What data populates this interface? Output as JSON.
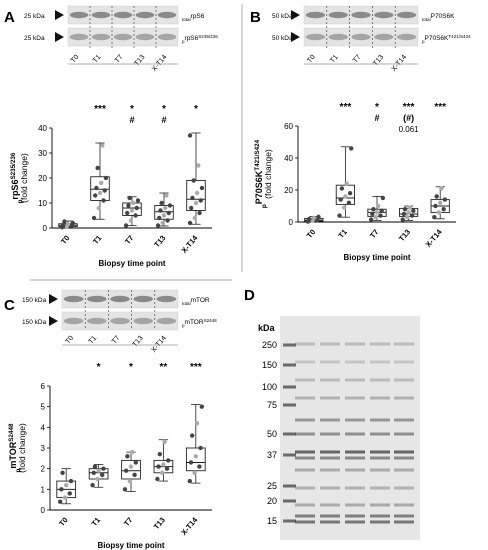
{
  "panels": {
    "A": {
      "letter": "A"
    },
    "B": {
      "letter": "B"
    },
    "C": {
      "letter": "C"
    },
    "D": {
      "letter": "D"
    }
  },
  "blots": {
    "A": {
      "rows": [
        {
          "kda": "25 kDa",
          "pre": "total",
          "name": "rpS6",
          "sup": ""
        },
        {
          "kda": "25 kDa",
          "pre": "p",
          "name": "rpS6",
          "sup": "S235/236"
        }
      ],
      "lanes": [
        "T0",
        "T1",
        "T7",
        "T13",
        "X-T14"
      ]
    },
    "B": {
      "rows": [
        {
          "kda": "50 kDa",
          "pre": "total",
          "name": "P70S6K",
          "sup": ""
        },
        {
          "kda": "50 kDa",
          "pre": "p",
          "name": "P70S6K",
          "sup": "T421/S424"
        }
      ],
      "lanes": [
        "T0",
        "T1",
        "T7",
        "T13",
        "X-T14"
      ]
    },
    "C": {
      "rows": [
        {
          "kda": "150 kDa",
          "pre": "total",
          "name": "mTOR",
          "sup": ""
        },
        {
          "kda": "150 kDa",
          "pre": "p",
          "name": "mTOR",
          "sup": "S2448"
        }
      ],
      "lanes": [
        "T0",
        "T1",
        "T7",
        "T13",
        "X-T14"
      ]
    }
  },
  "chart_data": [
    {
      "panel": "A",
      "type": "box",
      "ylabel_main": "rpS6",
      "ylabel_pre": "p",
      "ylabel_sup": "S235/236",
      "ylabel_sub": "(fold change)",
      "xlabel": "Biopsy time point",
      "categories": [
        "T0",
        "T1",
        "T7",
        "T13",
        "X-T14"
      ],
      "ylim": [
        0,
        40
      ],
      "yticks": [
        0,
        10,
        20,
        30,
        40
      ],
      "boxes": [
        {
          "min": 0.2,
          "q1": 0.6,
          "median": 1.1,
          "q3": 1.7,
          "max": 2.8
        },
        {
          "min": 3.5,
          "q1": 11.0,
          "median": 15.5,
          "q3": 20.5,
          "max": 34.0
        },
        {
          "min": 1.0,
          "q1": 5.0,
          "median": 8.0,
          "q3": 10.0,
          "max": 12.5
        },
        {
          "min": 0.8,
          "q1": 3.5,
          "median": 6.5,
          "q3": 9.0,
          "max": 14.0
        },
        {
          "min": 1.5,
          "q1": 7.0,
          "median": 11.5,
          "q3": 19.0,
          "max": 38.0
        }
      ],
      "points": [
        [
          0.3,
          0.6,
          0.9,
          1.2,
          1.5,
          2.0,
          2.6
        ],
        [
          4,
          8,
          11,
          13,
          14,
          15,
          16,
          18,
          20,
          24,
          33
        ],
        [
          1,
          3,
          5,
          6,
          7,
          8,
          9,
          10,
          11,
          12
        ],
        [
          1,
          2,
          3,
          4,
          5,
          6,
          7,
          8,
          9,
          10,
          13
        ],
        [
          2,
          4,
          6,
          8,
          10,
          11,
          12,
          14,
          16,
          19,
          25,
          37
        ]
      ],
      "sig": [
        "",
        "***",
        "*",
        "*",
        "*"
      ],
      "sig2": [
        "",
        "",
        "#",
        "#",
        ""
      ]
    },
    {
      "panel": "B",
      "type": "box",
      "ylabel_main": "P70S6K",
      "ylabel_pre": "p",
      "ylabel_sup": "T421/S424",
      "ylabel_sub": "(fold change)",
      "xlabel": "Biopsy time point",
      "categories": [
        "T0",
        "T1",
        "T7",
        "T13",
        "X-T14"
      ],
      "ylim": [
        0,
        60
      ],
      "yticks": [
        0,
        20,
        40,
        60
      ],
      "boxes": [
        {
          "min": 0.2,
          "q1": 0.6,
          "median": 1.2,
          "q3": 2.2,
          "max": 3.5
        },
        {
          "min": 3.0,
          "q1": 11.0,
          "median": 15.0,
          "q3": 23.0,
          "max": 47.0
        },
        {
          "min": 1.0,
          "q1": 3.5,
          "median": 6.0,
          "q3": 8.0,
          "max": 16.0
        },
        {
          "min": 1.0,
          "q1": 3.5,
          "median": 5.0,
          "q3": 8.5,
          "max": 10.0
        },
        {
          "min": 2.0,
          "q1": 6.0,
          "median": 10.0,
          "q3": 14.0,
          "max": 22.0
        }
      ],
      "points": [
        [
          0.3,
          0.8,
          1.2,
          1.8,
          2.5,
          3.2
        ],
        [
          4,
          9,
          12,
          14,
          16,
          18,
          21,
          24,
          46
        ],
        [
          1.5,
          3,
          4,
          5,
          6,
          7,
          8,
          10,
          15
        ],
        [
          1.5,
          3,
          4,
          5,
          6,
          7,
          8,
          9
        ],
        [
          3,
          6,
          8,
          10,
          12,
          14,
          16,
          21
        ]
      ],
      "sig": [
        "",
        "***",
        "*",
        "***",
        "***"
      ],
      "sig2": [
        "",
        "",
        "#",
        "(#)",
        ""
      ],
      "sig3": [
        "",
        "",
        "",
        "0.061",
        ""
      ]
    },
    {
      "panel": "C",
      "type": "box",
      "ylabel_main": "mTOR",
      "ylabel_pre": "p",
      "ylabel_sup": "S2448",
      "ylabel_sub": "(fold change)",
      "xlabel": "Biopsy time point",
      "categories": [
        "T0",
        "T1",
        "T7",
        "T13",
        "X-T14"
      ],
      "ylim": [
        0,
        6
      ],
      "yticks": [
        0,
        1,
        2,
        3,
        4,
        5,
        6
      ],
      "boxes": [
        {
          "min": 0.3,
          "q1": 0.6,
          "median": 1.0,
          "q3": 1.4,
          "max": 2.0
        },
        {
          "min": 1.1,
          "q1": 1.5,
          "median": 1.8,
          "q3": 2.0,
          "max": 2.2
        },
        {
          "min": 0.9,
          "q1": 1.5,
          "median": 1.9,
          "q3": 2.4,
          "max": 2.8
        },
        {
          "min": 1.4,
          "q1": 1.8,
          "median": 2.1,
          "q3": 2.4,
          "max": 3.4
        },
        {
          "min": 1.3,
          "q1": 1.9,
          "median": 2.3,
          "q3": 3.0,
          "max": 5.1
        }
      ],
      "points": [
        [
          0.4,
          0.6,
          0.8,
          1.0,
          1.2,
          1.4,
          1.8
        ],
        [
          1.2,
          1.5,
          1.7,
          1.8,
          1.9,
          2.0,
          2.1
        ],
        [
          1.0,
          1.4,
          1.7,
          1.9,
          2.1,
          2.3,
          2.6,
          2.8
        ],
        [
          1.5,
          1.8,
          2.0,
          2.1,
          2.2,
          2.4,
          2.7,
          3.3
        ],
        [
          1.4,
          1.8,
          2.1,
          2.3,
          2.6,
          3.0,
          3.6,
          4.2,
          5.0
        ]
      ],
      "sig": [
        "",
        "*",
        "*",
        "**",
        "***"
      ],
      "sig2": [
        "",
        "",
        "",
        "",
        ""
      ]
    }
  ],
  "gel": {
    "unit": "kDa",
    "markers": [
      "250",
      "150",
      "100",
      "75",
      "50",
      "37",
      "25",
      "20",
      "15"
    ]
  },
  "colors": {
    "box": "#222222",
    "point_dark": "#444444",
    "point_light": "#aaaaaa",
    "text": "#000000"
  }
}
